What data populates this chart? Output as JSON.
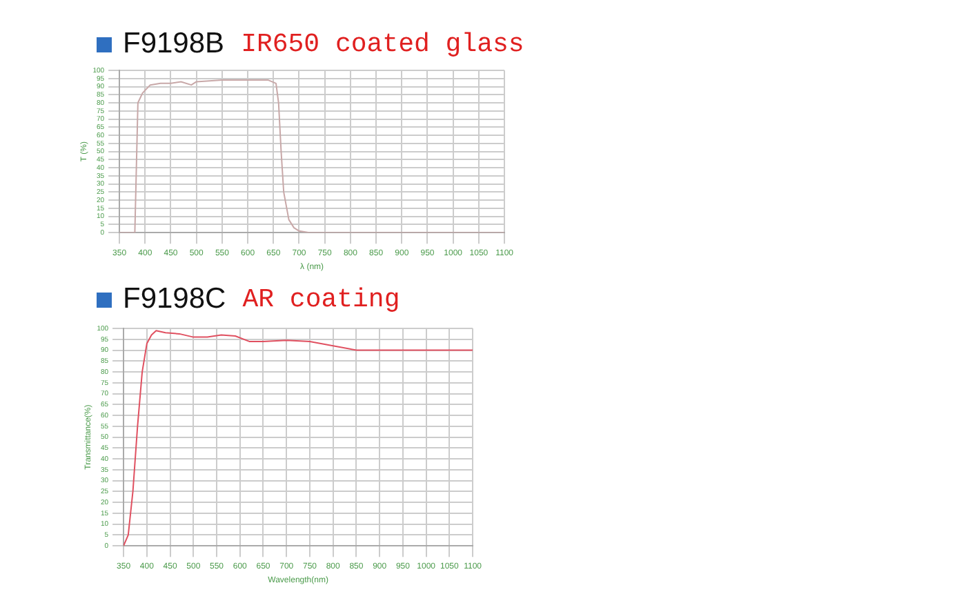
{
  "chart_data": [
    {
      "type": "line",
      "title": "F9198B",
      "subtitle": "IR650 coated glass",
      "xlabel": "λ (nm)",
      "ylabel": "T (%)",
      "x": [
        350,
        360,
        380,
        386,
        395,
        410,
        430,
        450,
        470,
        490,
        500,
        550,
        600,
        640,
        655,
        660,
        665,
        670,
        680,
        690,
        700,
        720,
        800,
        1100
      ],
      "series": [
        {
          "color": "#c8a8a8",
          "values": [
            0,
            0,
            0,
            80,
            86,
            91,
            92,
            92,
            93,
            91,
            93,
            94,
            94,
            94,
            92,
            80,
            50,
            25,
            8,
            3,
            1,
            0,
            0,
            0
          ]
        }
      ],
      "xlim": [
        350,
        1100
      ],
      "xticks": [
        350,
        400,
        450,
        500,
        550,
        600,
        650,
        700,
        750,
        800,
        850,
        900,
        950,
        1000,
        1050,
        1100
      ],
      "ylim": [
        0,
        100
      ],
      "yticks": [
        0,
        5,
        10,
        15,
        20,
        25,
        30,
        35,
        40,
        45,
        50,
        55,
        60,
        65,
        70,
        75,
        80,
        85,
        90,
        95,
        100
      ],
      "grid": true,
      "legend": false,
      "marker": "none",
      "line_style": "solid"
    },
    {
      "type": "line",
      "title": "F9198C",
      "subtitle": "AR coating",
      "xlabel": "Wavelength(nm)",
      "ylabel": "Transmittance(%)",
      "x": [
        350,
        360,
        370,
        380,
        390,
        400,
        410,
        420,
        440,
        470,
        500,
        530,
        560,
        590,
        620,
        650,
        700,
        750,
        800,
        850,
        900,
        1000,
        1100
      ],
      "series": [
        {
          "color": "#e05060",
          "values": [
            0,
            5,
            25,
            55,
            80,
            93,
            97,
            99,
            98,
            97.5,
            96,
            96,
            97,
            96.5,
            94,
            94,
            94.5,
            94,
            92,
            90,
            90,
            90,
            90
          ]
        }
      ],
      "xlim": [
        350,
        1100
      ],
      "xticks": [
        350,
        400,
        450,
        500,
        550,
        600,
        650,
        700,
        750,
        800,
        850,
        900,
        950,
        1000,
        1050,
        1100
      ],
      "ylim": [
        0,
        100
      ],
      "yticks": [
        0,
        5,
        10,
        15,
        20,
        25,
        30,
        35,
        40,
        45,
        50,
        55,
        60,
        65,
        70,
        75,
        80,
        85,
        90,
        95,
        100
      ],
      "grid": true,
      "legend": false,
      "marker": "none",
      "line_style": "solid"
    }
  ]
}
